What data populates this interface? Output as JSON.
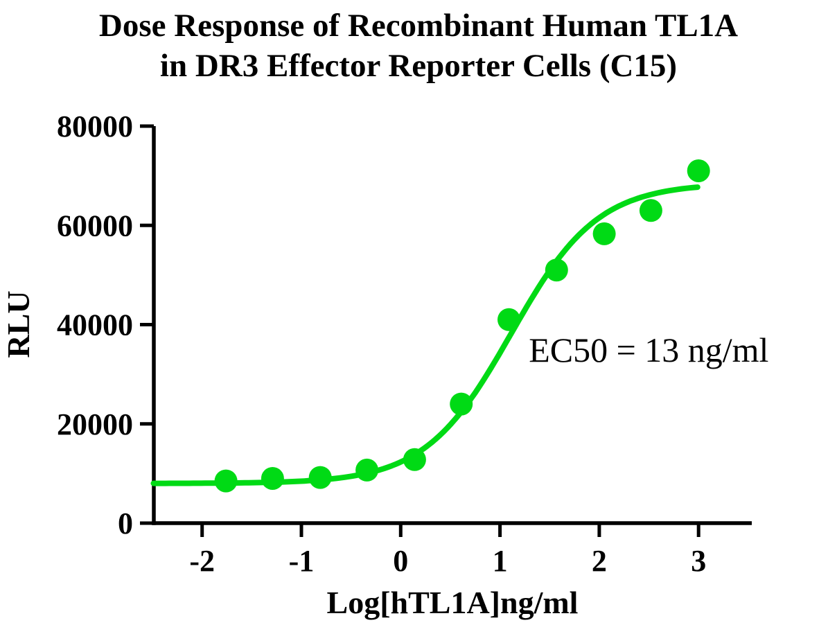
{
  "chart_data": {
    "type": "scatter",
    "title_line1": "Dose Response of Recombinant Human TL1A",
    "title_line2": "in DR3 Effector Reporter Cells (C15)",
    "xlabel": "Log[hTL1A]ng/ml",
    "ylabel": "RLU",
    "x_ticks": [
      -2,
      -1,
      0,
      1,
      2,
      3
    ],
    "y_ticks": [
      0,
      20000,
      40000,
      60000,
      80000
    ],
    "xlim": [
      -2.49,
      3.54
    ],
    "ylim": [
      0,
      80000
    ],
    "grid": false,
    "legend": "none",
    "series": [
      {
        "name": "hTL1A",
        "marker": "circle",
        "color": "#00DA15",
        "points": [
          {
            "x": -1.76,
            "y": 8500
          },
          {
            "x": -1.29,
            "y": 9000
          },
          {
            "x": -0.81,
            "y": 9200
          },
          {
            "x": -0.34,
            "y": 10700
          },
          {
            "x": 0.14,
            "y": 12800
          },
          {
            "x": 0.61,
            "y": 24000
          },
          {
            "x": 1.09,
            "y": 41000
          },
          {
            "x": 1.57,
            "y": 51000
          },
          {
            "x": 2.05,
            "y": 58300
          },
          {
            "x": 2.52,
            "y": 63000
          },
          {
            "x": 3.0,
            "y": 71000
          }
        ]
      }
    ],
    "fit_curve": {
      "model": "4PL sigmoid",
      "bottom": 8000,
      "top": 68500,
      "log_ec50": 1.114,
      "hill_slope": 1.0,
      "x_start": -2.49,
      "x_end": 3.0,
      "color": "#00DA15"
    },
    "annotation": {
      "text": "EC50 = 13 ng/ml",
      "x": 1.29,
      "y": 32500
    },
    "ec50_value": "13 ng/ml",
    "axis_color": "#000000",
    "background_color": "#ffffff"
  }
}
